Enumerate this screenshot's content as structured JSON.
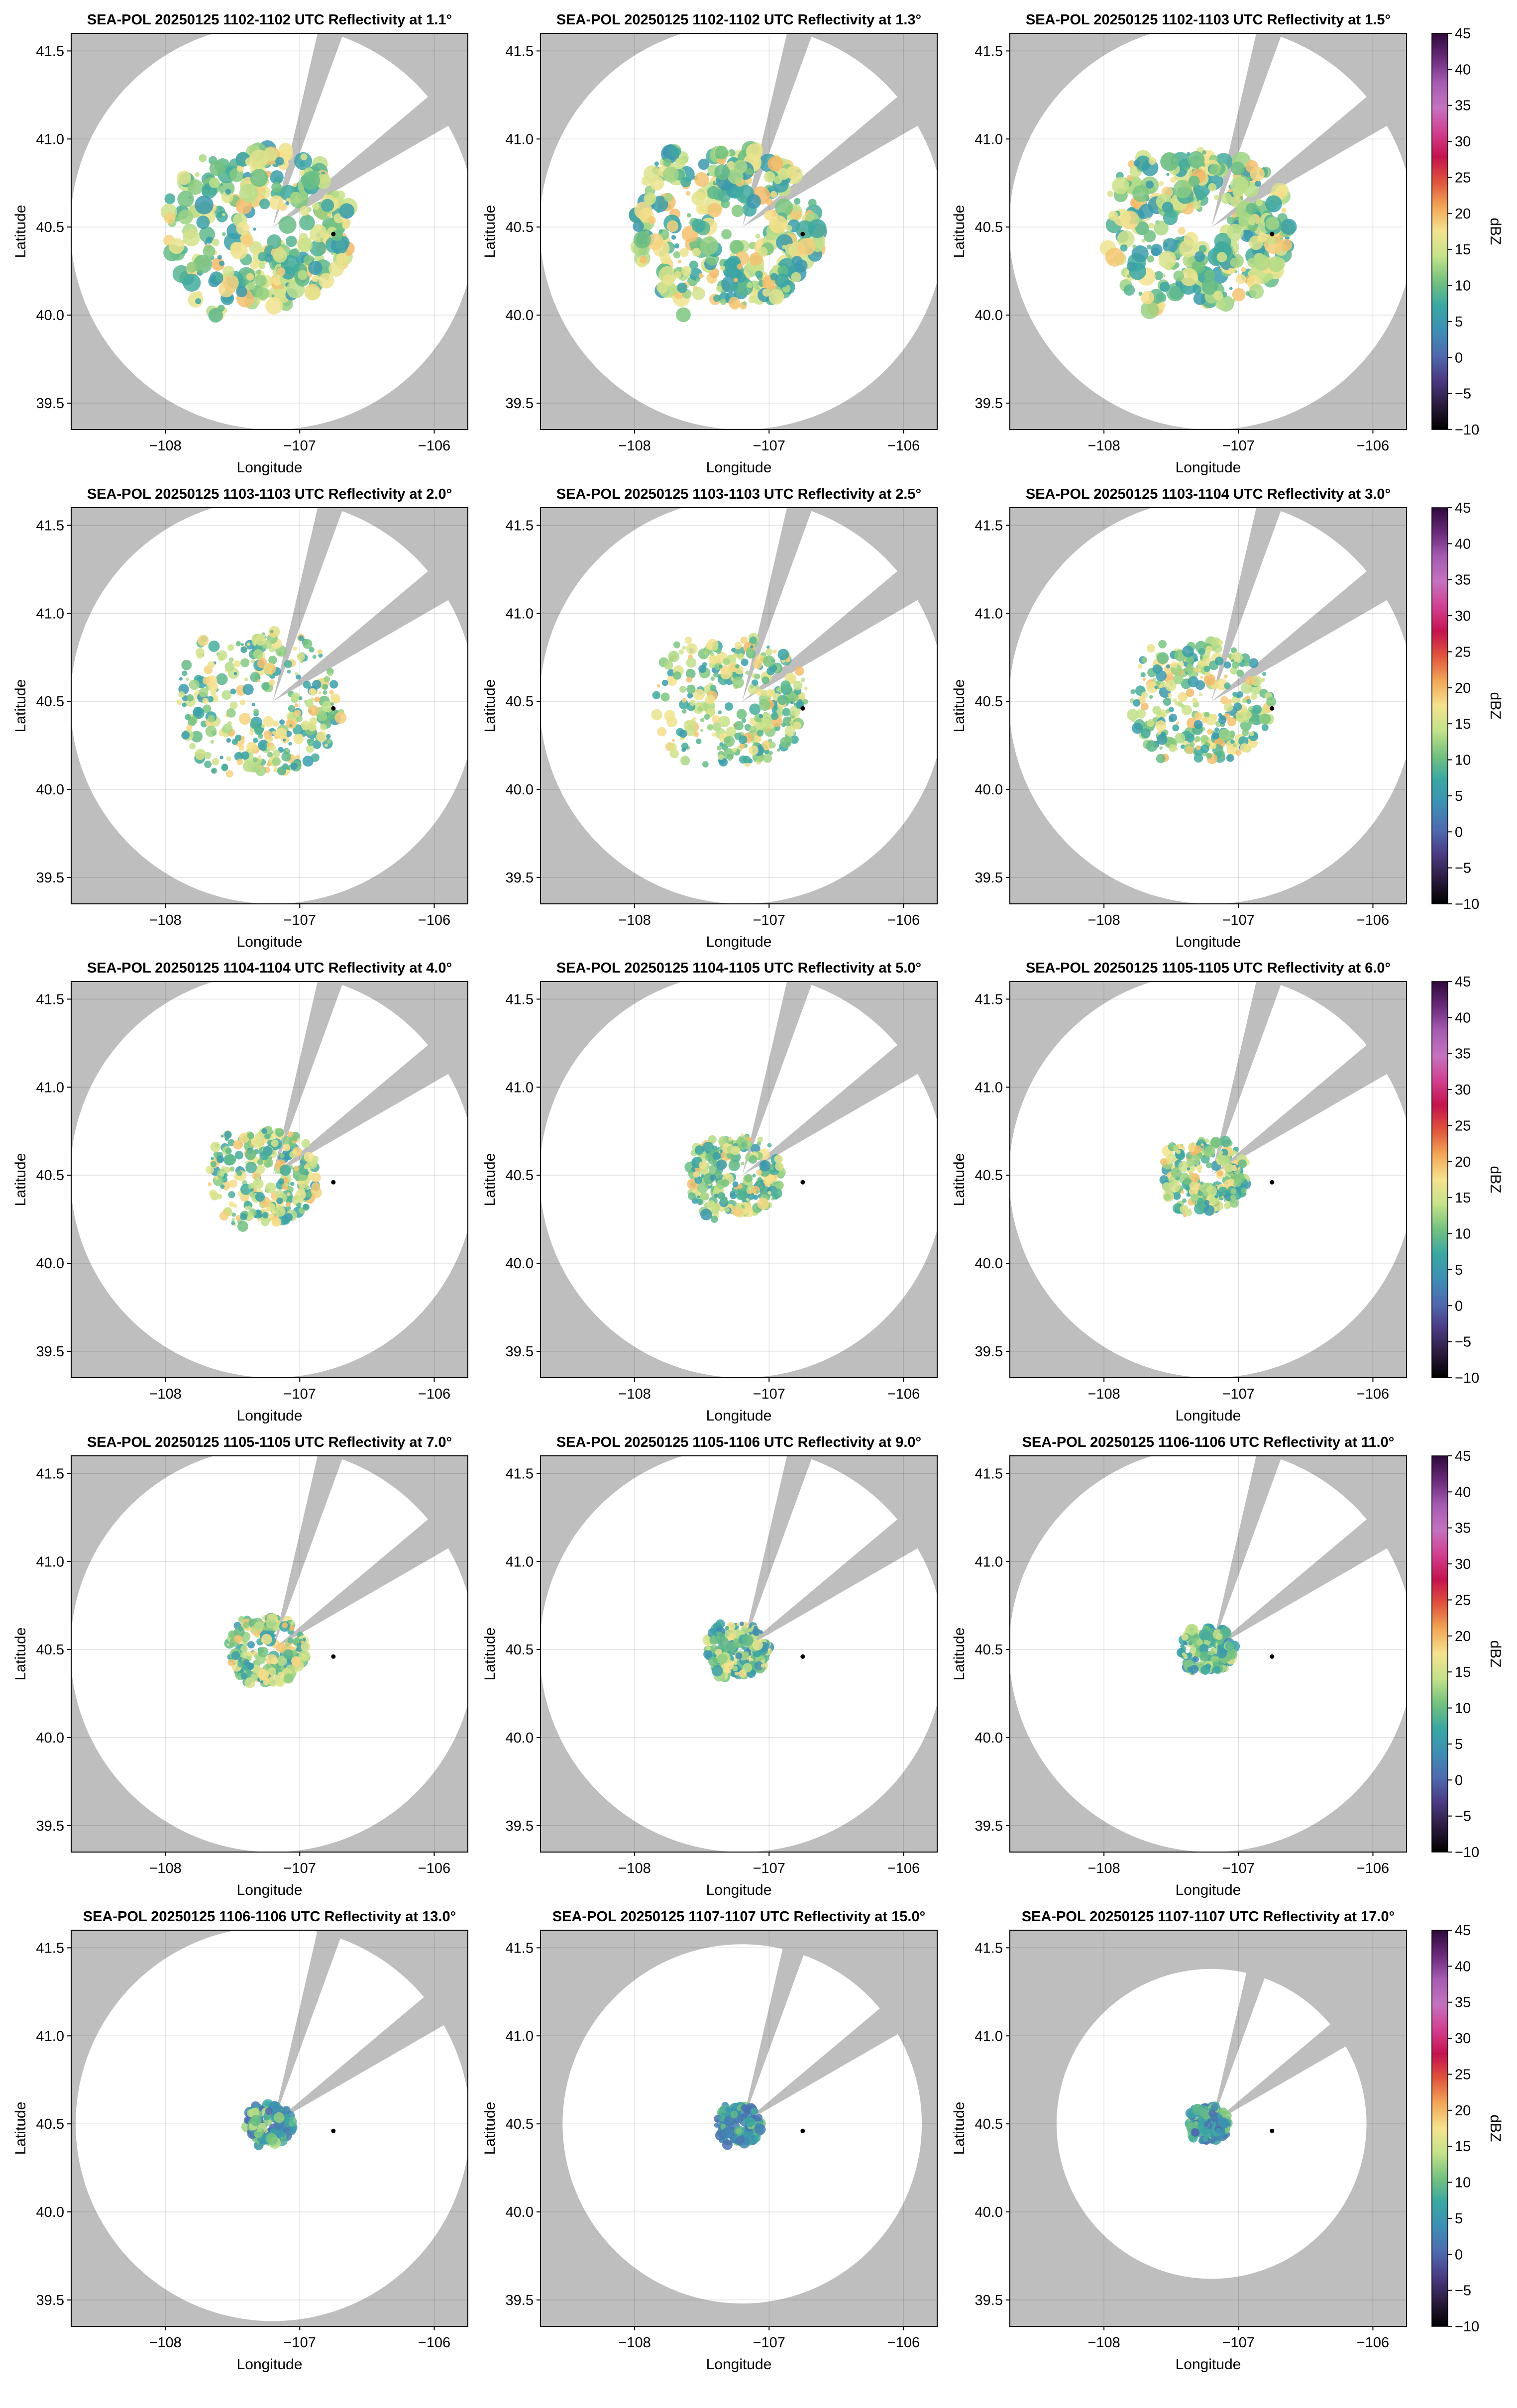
{
  "figure": {
    "background": "#ffffff",
    "axes_background": "#bebebe",
    "coverage_color": "#ffffff",
    "marker_color": "#000000"
  },
  "colorbar": {
    "label": "dBZ",
    "ticks": [
      45,
      40,
      35,
      30,
      25,
      20,
      15,
      10,
      5,
      0,
      -5,
      -10
    ],
    "tick_labels": [
      "45",
      "40",
      "35",
      "30",
      "25",
      "20",
      "15",
      "10",
      "5",
      "0",
      "−5",
      "−10"
    ],
    "range": [
      -10,
      45
    ],
    "stops": [
      "#000000",
      "#2a1b3e",
      "#4a3a83",
      "#4e6ab0",
      "#3d8fb4",
      "#3aa7a3",
      "#74c27e",
      "#c4e28a",
      "#f5e38f",
      "#f2a758",
      "#e0553c",
      "#c4134f",
      "#d23f90",
      "#c472bf",
      "#a65cb2",
      "#6a2a7a",
      "#2d0a3a"
    ]
  },
  "chart_data": {
    "type": "heatmap",
    "description_units": "Longitude (degrees), Latitude (degrees), reflectivity in dBZ",
    "xlabel": "Longitude",
    "ylabel": "Latitude",
    "xlim": [
      -108.7,
      -105.75
    ],
    "ylim": [
      39.35,
      41.6
    ],
    "xticks": [
      -108,
      -107,
      -106
    ],
    "xtick_labels": [
      "−108",
      "−107",
      "−106"
    ],
    "yticks": [
      39.5,
      40.0,
      40.5,
      41.0,
      41.5
    ],
    "ytick_labels": [
      "39.5",
      "40.0",
      "40.5",
      "41.0",
      "41.5"
    ],
    "grid": true,
    "radar_location": {
      "lon": -107.2,
      "lat": 40.5
    },
    "marker_point": {
      "lon": -106.75,
      "lat": 40.46
    },
    "blocked_sectors_deg_clockwise_from_north": [
      [
        13,
        20
      ],
      [
        50,
        60
      ]
    ],
    "panels": [
      {
        "title": "SEA-POL 20250125 1102-1102 UTC Reflectivity at 1.1°",
        "elevation_deg": 1.1,
        "time_utc": "1102-1102",
        "coverage_radius_deg_lat": 1.15,
        "echo_extent_deg_lat": 0.45,
        "echo_dbz_range": [
          5,
          20
        ]
      },
      {
        "title": "SEA-POL 20250125 1102-1102 UTC Reflectivity at 1.3°",
        "elevation_deg": 1.3,
        "time_utc": "1102-1102",
        "coverage_radius_deg_lat": 1.15,
        "echo_extent_deg_lat": 0.45,
        "echo_dbz_range": [
          5,
          20
        ]
      },
      {
        "title": "SEA-POL 20250125 1102-1103 UTC Reflectivity at 1.5°",
        "elevation_deg": 1.5,
        "time_utc": "1102-1103",
        "coverage_radius_deg_lat": 1.15,
        "echo_extent_deg_lat": 0.45,
        "echo_dbz_range": [
          5,
          20
        ]
      },
      {
        "title": "SEA-POL 20250125 1103-1103 UTC Reflectivity at 2.0°",
        "elevation_deg": 2.0,
        "time_utc": "1103-1103",
        "coverage_radius_deg_lat": 1.15,
        "echo_extent_deg_lat": 0.4,
        "echo_dbz_range": [
          5,
          20
        ]
      },
      {
        "title": "SEA-POL 20250125 1103-1103 UTC Reflectivity at 2.5°",
        "elevation_deg": 2.5,
        "time_utc": "1103-1103",
        "coverage_radius_deg_lat": 1.15,
        "echo_extent_deg_lat": 0.37,
        "echo_dbz_range": [
          5,
          20
        ]
      },
      {
        "title": "SEA-POL 20250125 1103-1104 UTC Reflectivity at 3.0°",
        "elevation_deg": 3.0,
        "time_utc": "1103-1104",
        "coverage_radius_deg_lat": 1.15,
        "echo_extent_deg_lat": 0.34,
        "echo_dbz_range": [
          5,
          20
        ]
      },
      {
        "title": "SEA-POL 20250125 1104-1104 UTC Reflectivity at 4.0°",
        "elevation_deg": 4.0,
        "time_utc": "1104-1104",
        "coverage_radius_deg_lat": 1.15,
        "echo_extent_deg_lat": 0.27,
        "echo_dbz_range": [
          5,
          20
        ]
      },
      {
        "title": "SEA-POL 20250125 1104-1105 UTC Reflectivity at 5.0°",
        "elevation_deg": 5.0,
        "time_utc": "1104-1105",
        "coverage_radius_deg_lat": 1.15,
        "echo_extent_deg_lat": 0.23,
        "echo_dbz_range": [
          5,
          20
        ]
      },
      {
        "title": "SEA-POL 20250125 1105-1105 UTC Reflectivity at 6.0°",
        "elevation_deg": 6.0,
        "time_utc": "1105-1105",
        "coverage_radius_deg_lat": 1.15,
        "echo_extent_deg_lat": 0.21,
        "echo_dbz_range": [
          5,
          20
        ]
      },
      {
        "title": "SEA-POL 20250125 1105-1105 UTC Reflectivity at 7.0°",
        "elevation_deg": 7.0,
        "time_utc": "1105-1105",
        "coverage_radius_deg_lat": 1.15,
        "echo_extent_deg_lat": 0.19,
        "echo_dbz_range": [
          5,
          20
        ]
      },
      {
        "title": "SEA-POL 20250125 1105-1106 UTC Reflectivity at 9.0°",
        "elevation_deg": 9.0,
        "time_utc": "1105-1106",
        "coverage_radius_deg_lat": 1.15,
        "echo_extent_deg_lat": 0.15,
        "echo_dbz_range": [
          3,
          18
        ]
      },
      {
        "title": "SEA-POL 20250125 1106-1106 UTC Reflectivity at 11.0°",
        "elevation_deg": 11.0,
        "time_utc": "1106-1106",
        "coverage_radius_deg_lat": 1.15,
        "echo_extent_deg_lat": 0.13,
        "echo_dbz_range": [
          3,
          16
        ]
      },
      {
        "title": "SEA-POL 20250125 1106-1106 UTC Reflectivity at 13.0°",
        "elevation_deg": 13.0,
        "time_utc": "1106-1106",
        "coverage_radius_deg_lat": 1.12,
        "echo_extent_deg_lat": 0.11,
        "echo_dbz_range": [
          0,
          14
        ]
      },
      {
        "title": "SEA-POL 20250125 1107-1107 UTC Reflectivity at 15.0°",
        "elevation_deg": 15.0,
        "time_utc": "1107-1107",
        "coverage_radius_deg_lat": 1.02,
        "echo_extent_deg_lat": 0.11,
        "echo_dbz_range": [
          0,
          12
        ]
      },
      {
        "title": "SEA-POL 20250125 1107-1107 UTC Reflectivity at 17.0°",
        "elevation_deg": 17.0,
        "time_utc": "1107-1107",
        "coverage_radius_deg_lat": 0.88,
        "echo_extent_deg_lat": 0.1,
        "echo_dbz_range": [
          0,
          12
        ]
      }
    ]
  }
}
